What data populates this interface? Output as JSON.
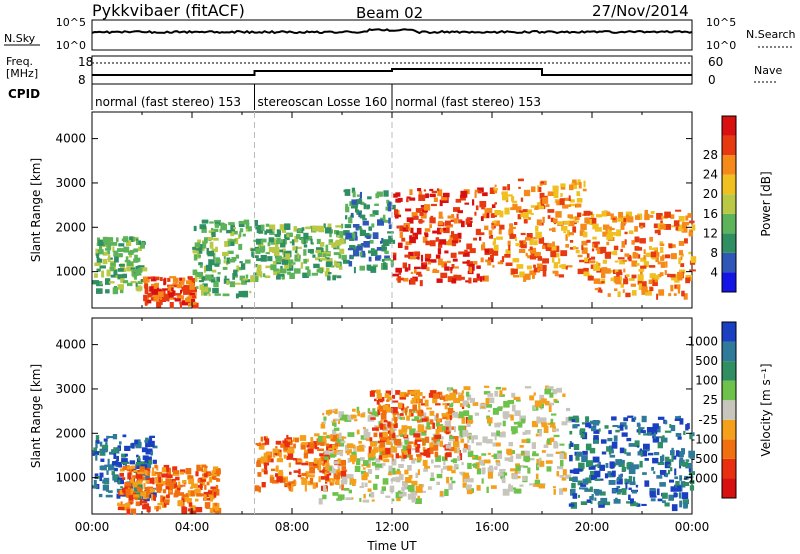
{
  "header": {
    "station": "Pykkvibaer (fitACF)",
    "beam": "Beam 02",
    "date": "27/Nov/2014"
  },
  "top_panel": {
    "nsky_label": "N.Sky",
    "nsky_ticks": [
      "10^5",
      "10^0"
    ],
    "nsearch_label": "N.Search",
    "nsearch_ticks": [
      "10^5",
      "10^0"
    ],
    "freq_label": "Freq.",
    "freq_unit": "[MHz]",
    "freq_ticks": [
      "18",
      "8"
    ],
    "nave_label": "Nave",
    "nave_ticks": [
      "60",
      "0"
    ],
    "cpid_label": "CPID",
    "cpid_segments": [
      {
        "label": "normal (fast stereo) 153",
        "start_hour": 0,
        "end_hour": 6.5
      },
      {
        "label": "stereoscan Losse 160",
        "start_hour": 6.5,
        "end_hour": 12
      },
      {
        "label": "normal (fast stereo) 153",
        "start_hour": 12,
        "end_hour": 24
      }
    ]
  },
  "chart_data": [
    {
      "type": "heatmap",
      "name": "power",
      "xlabel": "",
      "ylabel": "Slant Range [km]",
      "xlim": [
        0,
        24
      ],
      "ylim": [
        180,
        4600
      ],
      "yticks": [
        "1000",
        "2000",
        "3000",
        "4000"
      ],
      "colorbar": {
        "label": "Power [dB]",
        "ticks": [
          "4",
          "8",
          "12",
          "16",
          "20",
          "24",
          "28"
        ],
        "colors": [
          "#1414e6",
          "#2f57b8",
          "#2f8f62",
          "#5db35a",
          "#b9c845",
          "#f0c020",
          "#f58a1a",
          "#e83a10",
          "#d81010"
        ]
      },
      "regions": [
        {
          "hours": [
            0,
            2
          ],
          "range_km": [
            600,
            1800
          ],
          "level": "12"
        },
        {
          "hours": [
            2,
            4
          ],
          "range_km": [
            300,
            900
          ],
          "level": "28"
        },
        {
          "hours": [
            4,
            6.5
          ],
          "range_km": [
            500,
            2200
          ],
          "level": "12"
        },
        {
          "hours": [
            6.5,
            10
          ],
          "range_km": [
            900,
            2100
          ],
          "level": "12"
        },
        {
          "hours": [
            10,
            12
          ],
          "range_km": [
            1100,
            2900
          ],
          "level": "8"
        },
        {
          "hours": [
            12,
            16
          ],
          "range_km": [
            800,
            2900
          ],
          "level": "28"
        },
        {
          "hours": [
            16,
            20
          ],
          "range_km": [
            900,
            3100
          ],
          "level": "24"
        },
        {
          "hours": [
            20,
            24
          ],
          "range_km": [
            500,
            2400
          ],
          "level": "24"
        }
      ]
    },
    {
      "type": "heatmap",
      "name": "velocity",
      "xlabel": "Time UT",
      "ylabel": "Slant Range [km]",
      "xlim": [
        0,
        24
      ],
      "ylim": [
        180,
        4600
      ],
      "xticks": [
        "00:00",
        "04:00",
        "08:00",
        "12:00",
        "16:00",
        "20:00",
        "00:00"
      ],
      "yticks": [
        "1000",
        "2000",
        "3000",
        "4000"
      ],
      "colorbar": {
        "label": "Velocity [m s⁻¹]",
        "ticks": [
          "1000",
          "500",
          "100",
          "25",
          "-25",
          "-100",
          "-500",
          "-1000"
        ],
        "colors": [
          "#1a3fc0",
          "#2f7a9a",
          "#2f8f62",
          "#6cc24a",
          "#c8c6bc",
          "#f5a01a",
          "#f07010",
          "#e83010",
          "#d81010"
        ]
      },
      "regions": [
        {
          "hours": [
            0,
            2.5
          ],
          "range_km": [
            600,
            2000
          ],
          "level": "500"
        },
        {
          "hours": [
            1,
            5
          ],
          "range_km": [
            300,
            1300
          ],
          "level": "-500"
        },
        {
          "hours": [
            6.5,
            10
          ],
          "range_km": [
            800,
            2000
          ],
          "level": "-500"
        },
        {
          "hours": [
            9,
            14
          ],
          "range_km": [
            500,
            2600
          ],
          "level": "-25"
        },
        {
          "hours": [
            11,
            15
          ],
          "range_km": [
            1500,
            3000
          ],
          "level": "-500"
        },
        {
          "hours": [
            14,
            19
          ],
          "range_km": [
            700,
            3100
          ],
          "level": "-25"
        },
        {
          "hours": [
            19,
            24
          ],
          "range_km": [
            400,
            2400
          ],
          "level": "500"
        }
      ]
    }
  ]
}
